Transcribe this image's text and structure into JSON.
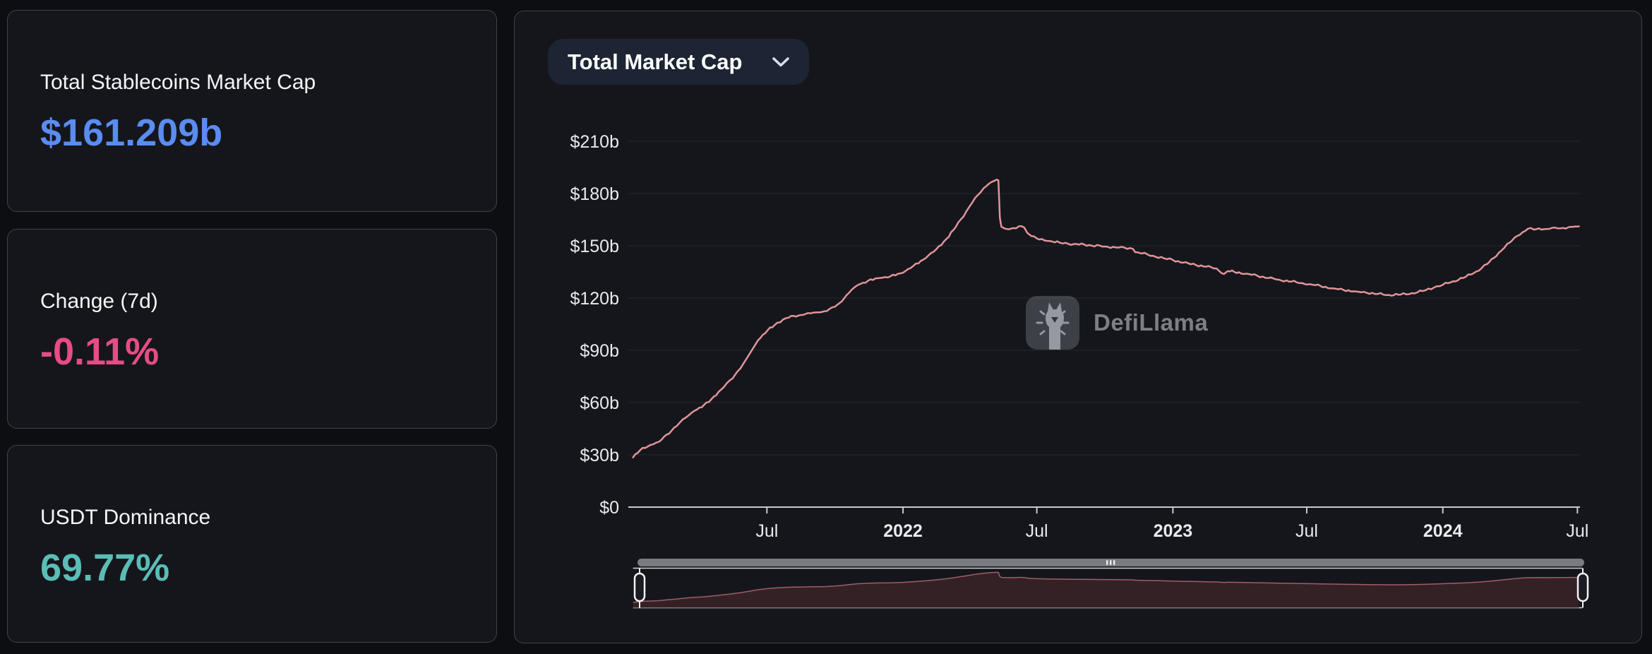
{
  "page": {
    "background": "#0d0e11",
    "card_background": "#15161b",
    "card_border": "#3f424a"
  },
  "stats": [
    {
      "id": "total-mcap",
      "label": "Total Stablecoins Market Cap",
      "value": "$161.209b",
      "color": "#5a8cf2"
    },
    {
      "id": "change-7d",
      "label": "Change (7d)",
      "value": "-0.11%",
      "color": "#e64c85"
    },
    {
      "id": "usdt-dominance",
      "label": "USDT Dominance",
      "value": "69.77%",
      "color": "#5abdb7"
    }
  ],
  "chart_panel": {
    "dropdown": {
      "label": "Total Market Cap",
      "icon": "chevron-down"
    },
    "watermark": {
      "text": "DefiLlama",
      "logo": "defillama-llama-logo"
    }
  },
  "chart_data": {
    "type": "line",
    "title": "Total Market Cap",
    "unit": "USD billions",
    "x_start": "2021-01-01",
    "x_end": "2024-07-03",
    "ylim": [
      0,
      224
    ],
    "yticks": [
      0,
      30,
      60,
      90,
      120,
      150,
      180,
      210
    ],
    "ytick_prefix": "$",
    "ytick_suffix": "b",
    "grid": "horizontal",
    "legend_position": "none",
    "xticks": [
      {
        "date": "2021-07-01",
        "label": "Jul",
        "bold": false
      },
      {
        "date": "2022-01-01",
        "label": "2022",
        "bold": true
      },
      {
        "date": "2022-07-01",
        "label": "Jul",
        "bold": false
      },
      {
        "date": "2023-01-01",
        "label": "2023",
        "bold": true
      },
      {
        "date": "2023-07-01",
        "label": "Jul",
        "bold": false
      },
      {
        "date": "2024-01-01",
        "label": "2024",
        "bold": true
      },
      {
        "date": "2024-07-01",
        "label": "Jul",
        "bold": false
      }
    ],
    "series": [
      {
        "name": "Total Market Cap",
        "color": "#e0949a",
        "points": [
          [
            "2021-01-01",
            28.5
          ],
          [
            "2021-01-07",
            31
          ],
          [
            "2021-01-14",
            34
          ],
          [
            "2021-01-28",
            36
          ],
          [
            "2021-02-05",
            37.5
          ],
          [
            "2021-02-15",
            41.5
          ],
          [
            "2021-03-01",
            46.5
          ],
          [
            "2021-03-13",
            51.3
          ],
          [
            "2021-03-25",
            55.3
          ],
          [
            "2021-04-04",
            57.3
          ],
          [
            "2021-04-17",
            62
          ],
          [
            "2021-04-30",
            67.4
          ],
          [
            "2021-05-12",
            72.8
          ],
          [
            "2021-05-26",
            79.5
          ],
          [
            "2021-06-07",
            87.6
          ],
          [
            "2021-06-19",
            95.7
          ],
          [
            "2021-07-02",
            101.5
          ],
          [
            "2021-07-15",
            105.8
          ],
          [
            "2021-07-27",
            108.5
          ],
          [
            "2021-08-06",
            109.8
          ],
          [
            "2021-08-19",
            110.3
          ],
          [
            "2021-08-29",
            111.2
          ],
          [
            "2021-09-10",
            111.8
          ],
          [
            "2021-09-20",
            112.5
          ],
          [
            "2021-10-01",
            115
          ],
          [
            "2021-10-10",
            118
          ],
          [
            "2021-10-20",
            123
          ],
          [
            "2021-11-01",
            127.5
          ],
          [
            "2021-11-15",
            130
          ],
          [
            "2021-12-01",
            131.5
          ],
          [
            "2021-12-15",
            132.5
          ],
          [
            "2022-01-01",
            134.5
          ],
          [
            "2022-01-15",
            138.5
          ],
          [
            "2022-02-01",
            143
          ],
          [
            "2022-02-15",
            148
          ],
          [
            "2022-03-01",
            154
          ],
          [
            "2022-03-10",
            159
          ],
          [
            "2022-03-20",
            165
          ],
          [
            "2022-03-28",
            170
          ],
          [
            "2022-04-05",
            175
          ],
          [
            "2022-04-12",
            179
          ],
          [
            "2022-04-20",
            183
          ],
          [
            "2022-04-27",
            185.5
          ],
          [
            "2022-05-03",
            187
          ],
          [
            "2022-05-08",
            188
          ],
          [
            "2022-05-10",
            187.5
          ],
          [
            "2022-05-12",
            166
          ],
          [
            "2022-05-14",
            161
          ],
          [
            "2022-05-18",
            160
          ],
          [
            "2022-05-25",
            159.5
          ],
          [
            "2022-06-03",
            160
          ],
          [
            "2022-06-10",
            161.3
          ],
          [
            "2022-06-14",
            160.5
          ],
          [
            "2022-06-18",
            157.5
          ],
          [
            "2022-06-24",
            155.5
          ],
          [
            "2022-07-01",
            154.2
          ],
          [
            "2022-07-15",
            152.8
          ],
          [
            "2022-08-01",
            151.8
          ],
          [
            "2022-08-20",
            151
          ],
          [
            "2022-09-10",
            150.4
          ],
          [
            "2022-10-01",
            149.6
          ],
          [
            "2022-10-20",
            149
          ],
          [
            "2022-11-08",
            148.2
          ],
          [
            "2022-11-11",
            146.3
          ],
          [
            "2022-11-20",
            145.6
          ],
          [
            "2022-12-05",
            144.3
          ],
          [
            "2022-12-20",
            142.8
          ],
          [
            "2023-01-01",
            141.8
          ],
          [
            "2023-01-15",
            140.3
          ],
          [
            "2023-02-01",
            139
          ],
          [
            "2023-02-15",
            138
          ],
          [
            "2023-03-01",
            137
          ],
          [
            "2023-03-11",
            133.8
          ],
          [
            "2023-03-16",
            135.5
          ],
          [
            "2023-03-25",
            135
          ],
          [
            "2023-04-10",
            134
          ],
          [
            "2023-04-25",
            132.8
          ],
          [
            "2023-05-10",
            131.5
          ],
          [
            "2023-05-25",
            130.5
          ],
          [
            "2023-06-10",
            129.4
          ],
          [
            "2023-06-25",
            128.6
          ],
          [
            "2023-07-05",
            128
          ],
          [
            "2023-07-20",
            126.8
          ],
          [
            "2023-08-05",
            125.6
          ],
          [
            "2023-08-20",
            124.6
          ],
          [
            "2023-09-05",
            123.8
          ],
          [
            "2023-09-20",
            123
          ],
          [
            "2023-10-05",
            122.3
          ],
          [
            "2023-10-20",
            121.8
          ],
          [
            "2023-11-05",
            122
          ],
          [
            "2023-11-20",
            122.8
          ],
          [
            "2023-12-05",
            124
          ],
          [
            "2023-12-20",
            126
          ],
          [
            "2024-01-01",
            127.6
          ],
          [
            "2024-01-15",
            129.6
          ],
          [
            "2024-02-01",
            132.2
          ],
          [
            "2024-02-15",
            135.2
          ],
          [
            "2024-03-01",
            139.5
          ],
          [
            "2024-03-10",
            143
          ],
          [
            "2024-03-20",
            147.2
          ],
          [
            "2024-04-01",
            152
          ],
          [
            "2024-04-10",
            155.5
          ],
          [
            "2024-04-18",
            157.8
          ],
          [
            "2024-04-25",
            159.8
          ],
          [
            "2024-05-03",
            159.3
          ],
          [
            "2024-05-10",
            160
          ],
          [
            "2024-05-20",
            159.6
          ],
          [
            "2024-06-01",
            160.4
          ],
          [
            "2024-06-12",
            160.2
          ],
          [
            "2024-06-22",
            160.9
          ],
          [
            "2024-07-01",
            161
          ],
          [
            "2024-07-03",
            161.2
          ]
        ]
      }
    ],
    "brush": {
      "visible": true,
      "window_start": "2021-01-01",
      "window_end": "2024-07-03"
    },
    "style": {
      "grid_color": "rgba(255,255,255,0.08)",
      "axis_color": "#c9cacd",
      "tick_label_color": "#e9eaec",
      "brush_fill": "#332125",
      "brush_stroke": "#9c5f66",
      "brush_border": "#e8e8e8",
      "scrollbar_color": "#7a7b80",
      "scrollbar_grip_color": "#ededee",
      "handle_stroke": "#f3f3f3",
      "handle_fill": "#1b1c21"
    }
  }
}
